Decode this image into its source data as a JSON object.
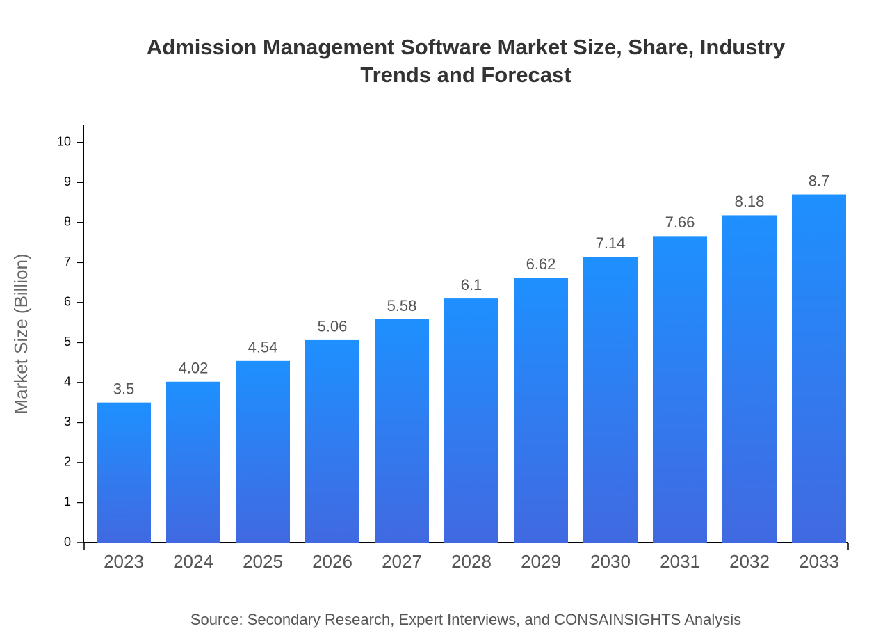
{
  "chart_data": {
    "type": "bar",
    "title": "Admission Management Software Market Size, Share, Industry Trends and Forecast",
    "y_label": "Market Size (Billion)",
    "source": "Source: Secondary Research, Expert Interviews, and CONSAINSIGHTS Analysis",
    "categories": [
      "2023",
      "2024",
      "2025",
      "2026",
      "2027",
      "2028",
      "2029",
      "2030",
      "2031",
      "2032",
      "2033"
    ],
    "values": [
      3.5,
      4.02,
      4.54,
      5.06,
      5.58,
      6.1,
      6.62,
      7.14,
      7.66,
      8.18,
      8.7
    ],
    "gradient": [
      "#1E90FF",
      "#4169E1"
    ],
    "ylim": [
      0,
      10.43
    ],
    "yticks": [
      0,
      1,
      2,
      3,
      4,
      5,
      6,
      7,
      8,
      9,
      10
    ],
    "grid": false
  }
}
